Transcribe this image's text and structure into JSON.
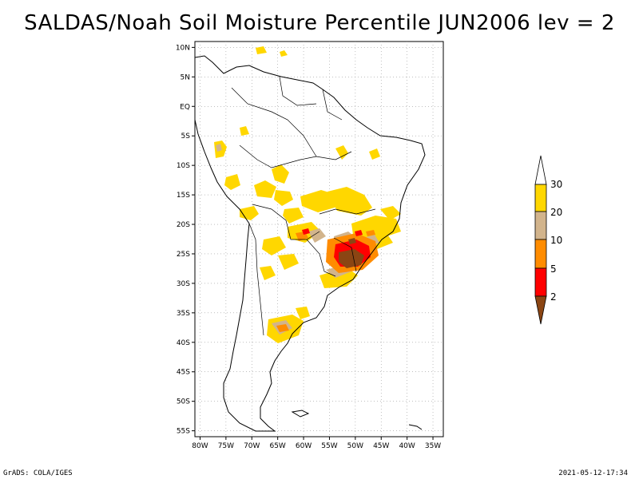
{
  "title": "SALDAS/Noah Soil Moisture Percentile JUN2006 lev = 2",
  "map": {
    "lat_ticks": [
      "10N",
      "5N",
      "EQ",
      "5S",
      "10S",
      "15S",
      "20S",
      "25S",
      "30S",
      "35S",
      "40S",
      "45S",
      "50S",
      "55S"
    ],
    "lon_ticks": [
      "80W",
      "75W",
      "70W",
      "65W",
      "60W",
      "55W",
      "50W",
      "45W",
      "40W",
      "35W"
    ],
    "lon_range": [
      -81,
      -33
    ],
    "lat_range": [
      -56,
      11
    ],
    "grid": true
  },
  "colorbar": {
    "labels": [
      "2",
      "5",
      "10",
      "20",
      "30"
    ],
    "colors": {
      "below_2": "#8B4513",
      "2_5": "#ff0000",
      "5_10": "#ff8c00",
      "10_20": "#d2b48c",
      "20_30": "#ffd700",
      "above_30": "#ffffff"
    }
  },
  "footer": {
    "left": "GrADS: COLA/IGES",
    "right": "2021-05-12-17:34"
  }
}
